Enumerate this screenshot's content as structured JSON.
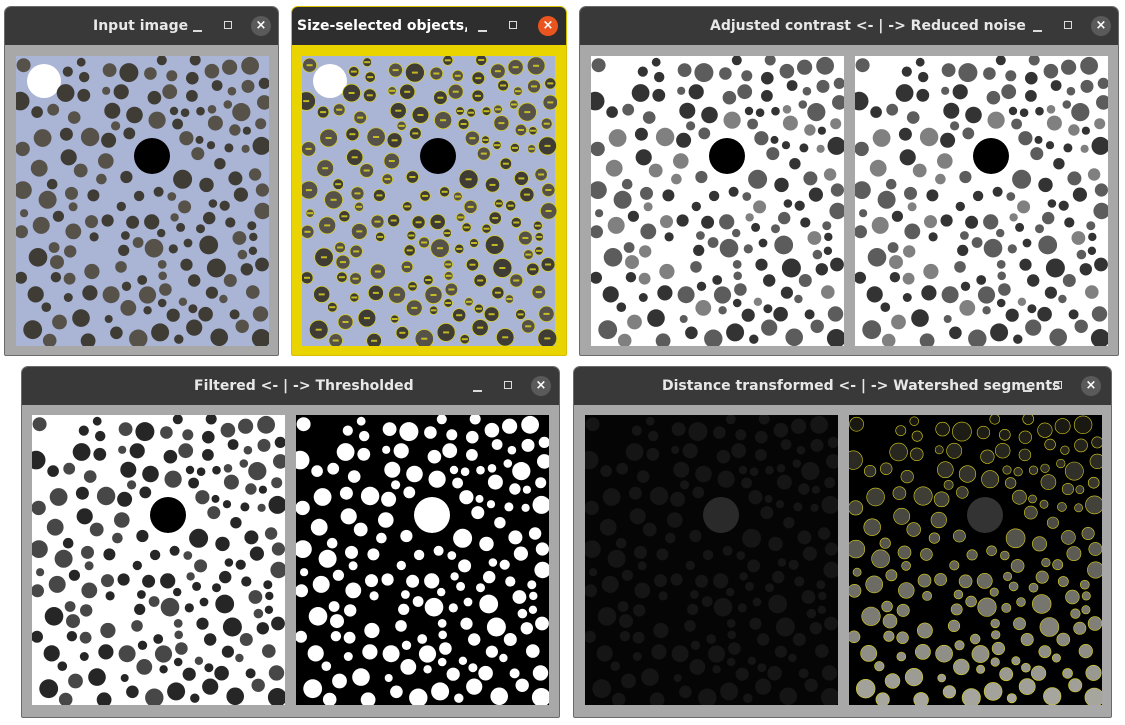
{
  "windows": [
    {
      "id": "input",
      "title": "Input image",
      "active": false
    },
    {
      "id": "size",
      "title": "Size-selected objects,...",
      "active": true
    },
    {
      "id": "contrast",
      "title": "Adjusted contrast <- | -> Reduced noise",
      "active": false
    },
    {
      "id": "filter",
      "title": "Filtered <- | -> Thresholded",
      "active": false
    },
    {
      "id": "distance",
      "title": "Distance transformed <- | -> Watershed segments",
      "active": false
    }
  ],
  "controls": {
    "minimize": "–",
    "maximize": "□",
    "close": "×"
  },
  "colors": {
    "titlebar": "#393939",
    "window_frame": "#a8a8a8",
    "active_frame": "#e9d400",
    "close_active": "#e9541f",
    "input_bg": "#aab4d4",
    "particle": "#46433a",
    "label_yellow": "#d8d020"
  },
  "icons": [
    "minimize-icon",
    "maximize-icon",
    "close-icon"
  ]
}
